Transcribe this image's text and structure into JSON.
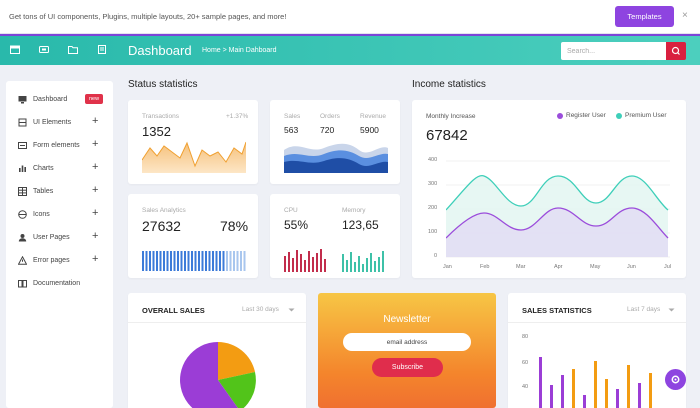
{
  "promo": {
    "text": "Get tons of UI components, Plugins, multiple layouts, 20+ sample pages, and more!",
    "button_label": "Templates",
    "close_label": "×"
  },
  "header": {
    "title": "Dashboard",
    "breadcrumb": "Home > Main Dahboard",
    "search_placeholder": "Search..."
  },
  "sidebar": {
    "items": [
      {
        "label": "Dashboard",
        "badge": "new"
      },
      {
        "label": "UI Elements",
        "expand": "+"
      },
      {
        "label": "Form elements",
        "expand": "+"
      },
      {
        "label": "Charts",
        "expand": "+"
      },
      {
        "label": "Tables",
        "expand": "+"
      },
      {
        "label": "Icons",
        "expand": "+"
      },
      {
        "label": "User Pages",
        "expand": "+"
      },
      {
        "label": "Error pages",
        "expand": "+"
      },
      {
        "label": "Documentation"
      }
    ]
  },
  "status": {
    "title": "Status statistics",
    "transactions": {
      "label": "Transactions",
      "change": "+1.37%",
      "value": "1352"
    },
    "sales": {
      "label1": "Sales",
      "label2": "Orders",
      "label3": "Revenue",
      "v1": "563",
      "v2": "720",
      "v3": "5900"
    },
    "analytics": {
      "label": "Sales Analytics",
      "value": "27632",
      "percent": "78%"
    },
    "cpu": {
      "label1": "CPU",
      "label2": "Memory",
      "v1": "55%",
      "v2": "123,65"
    }
  },
  "income": {
    "title": "Income statistics",
    "subtitle": "Monthly Increase",
    "value": "67842",
    "legend": [
      {
        "name": "Register User",
        "color": "#9b4ddb"
      },
      {
        "name": "Premium User",
        "color": "#3ecfb9"
      }
    ],
    "y_ticks": [
      "400",
      "300",
      "200",
      "100",
      "0"
    ],
    "x_ticks": [
      "Jan",
      "Feb",
      "Mar",
      "Apr",
      "May",
      "Jun",
      "Jul"
    ]
  },
  "overall_sales": {
    "title": "OVERALL SALES",
    "period": "Last 30 days"
  },
  "newsletter": {
    "title": "Newsletter",
    "email_placeholder": "email address",
    "button_label": "Subscribe"
  },
  "sales_stats": {
    "title": "SALES STATISTICS",
    "period": "Last 7 days",
    "y_ticks": [
      "80",
      "60",
      "40"
    ]
  },
  "colors": {
    "accent": "#8e44e0",
    "teal": "#3ecfb9",
    "danger": "#e0324a",
    "orange": "#f39c12",
    "green": "#52c41a"
  }
}
